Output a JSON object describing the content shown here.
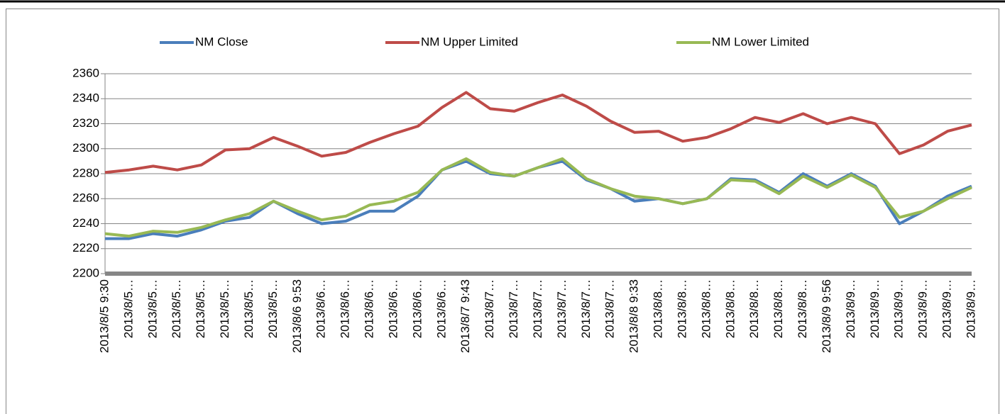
{
  "chart_data": {
    "type": "line",
    "categories": [
      "2013/8/5 9:30",
      "2013/8/5…",
      "2013/8/5…",
      "2013/8/5…",
      "2013/8/5…",
      "2013/8/5…",
      "2013/8/5…",
      "2013/8/5…",
      "2013/8/6 9:53",
      "2013/8/6…",
      "2013/8/6…",
      "2013/8/6…",
      "2013/8/6…",
      "2013/8/6…",
      "2013/8/6…",
      "2013/8/7 9:43",
      "2013/8/7…",
      "2013/8/7…",
      "2013/8/7…",
      "2013/8/7…",
      "2013/8/7…",
      "2013/8/7…",
      "2013/8/8 9:33",
      "2013/8/8…",
      "2013/8/8…",
      "2013/8/8…",
      "2013/8/8…",
      "2013/8/8…",
      "2013/8/8…",
      "2013/8/8…",
      "2013/8/9 9:56",
      "2013/8/9…",
      "2013/8/9…",
      "2013/8/9…",
      "2013/8/9…",
      "2013/8/9…",
      "2013/8/9…"
    ],
    "series": [
      {
        "name": "NM Close",
        "color": "#4a7ebb",
        "values": [
          2228,
          2228,
          2232,
          2230,
          2235,
          2242,
          2245,
          2258,
          2248,
          2240,
          2242,
          2250,
          2250,
          2262,
          2283,
          2290,
          2280,
          2278,
          2285,
          2290,
          2275,
          2268,
          2258,
          2260,
          2256,
          2260,
          2276,
          2275,
          2265,
          2280,
          2270,
          2280,
          2270,
          2240,
          2250,
          2262,
          2270
        ]
      },
      {
        "name": "NM Upper Limited",
        "color": "#be4b48",
        "values": [
          2281,
          2283,
          2286,
          2283,
          2287,
          2299,
          2300,
          2309,
          2302,
          2294,
          2297,
          2305,
          2312,
          2318,
          2333,
          2345,
          2332,
          2330,
          2337,
          2343,
          2334,
          2322,
          2313,
          2314,
          2306,
          2309,
          2316,
          2325,
          2321,
          2328,
          2320,
          2325,
          2320,
          2296,
          2303,
          2314,
          2319
        ]
      },
      {
        "name": "NM Lower Limited",
        "color": "#98b954",
        "values": [
          2232,
          2230,
          2234,
          2233,
          2237,
          2243,
          2248,
          2258,
          2250,
          2243,
          2246,
          2255,
          2258,
          2265,
          2283,
          2292,
          2281,
          2278,
          2285,
          2292,
          2276,
          2268,
          2262,
          2260,
          2256,
          2260,
          2275,
          2274,
          2264,
          2278,
          2269,
          2279,
          2269,
          2245,
          2250,
          2260,
          2269
        ]
      }
    ],
    "ylim": [
      2200,
      2360
    ],
    "yticks": [
      2200,
      2220,
      2240,
      2260,
      2280,
      2300,
      2320,
      2340,
      2360
    ],
    "grid": true,
    "legend": "top"
  }
}
